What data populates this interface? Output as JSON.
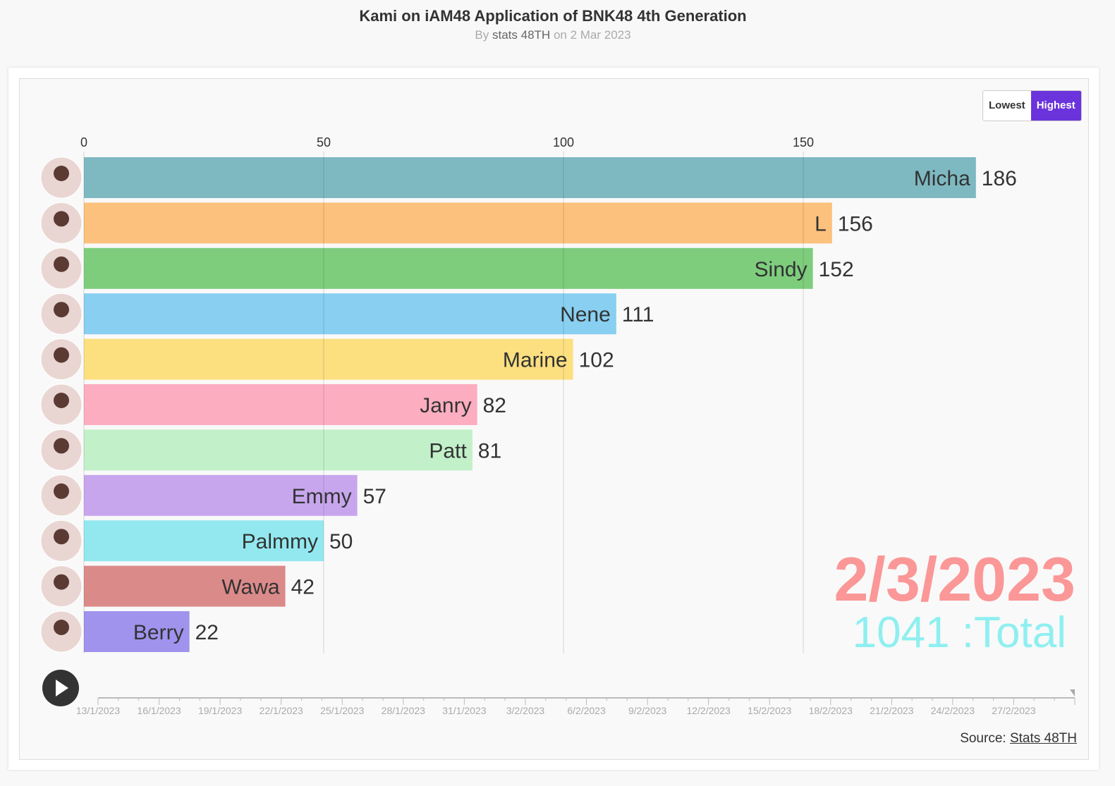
{
  "header": {
    "title": "Kami on iAM48 Application of BNK48 4th Generation",
    "subtitle_by": "By",
    "subtitle_author": "stats 48TH",
    "subtitle_on": "on 2 Mar 2023"
  },
  "toggle": {
    "lowest": "Lowest",
    "highest": "Highest",
    "selected": "Highest"
  },
  "source": {
    "label": "Source:",
    "link": "Stats 48TH"
  },
  "chart_data": {
    "type": "bar",
    "orientation": "horizontal",
    "title": "Kami on iAM48 Application of BNK48 4th Generation",
    "categories": [
      "Micha",
      "L",
      "Sindy",
      "Nene",
      "Marine",
      "Janry",
      "Patt",
      "Emmy",
      "Palmmy",
      "Wawa",
      "Berry"
    ],
    "values": [
      186,
      156,
      152,
      111,
      102,
      82,
      81,
      57,
      50,
      42,
      22
    ],
    "colors": [
      "#7eb9c2",
      "#fcc17c",
      "#7dcd7d",
      "#88cff1",
      "#fcdf7f",
      "#fcadc0",
      "#c1f0c9",
      "#c8a6ee",
      "#93e8ef",
      "#db8a8a",
      "#a093ee"
    ],
    "xticks": [
      0,
      50,
      100,
      150
    ],
    "xlim": [
      0,
      190
    ],
    "grid": true,
    "date_label": "2/3/2023",
    "total_label": "1041 :Total",
    "timeline": {
      "start": "13/1/2023",
      "days": 48,
      "labels": [
        "13/1/2023",
        "16/1/2023",
        "19/1/2023",
        "22/1/2023",
        "25/1/2023",
        "28/1/2023",
        "31/1/2023",
        "3/2/2023",
        "6/2/2023",
        "9/2/2023",
        "12/2/2023",
        "15/2/2023",
        "18/2/2023",
        "21/2/2023",
        "24/2/2023",
        "27/2/2023"
      ],
      "progress": 1.0
    }
  }
}
